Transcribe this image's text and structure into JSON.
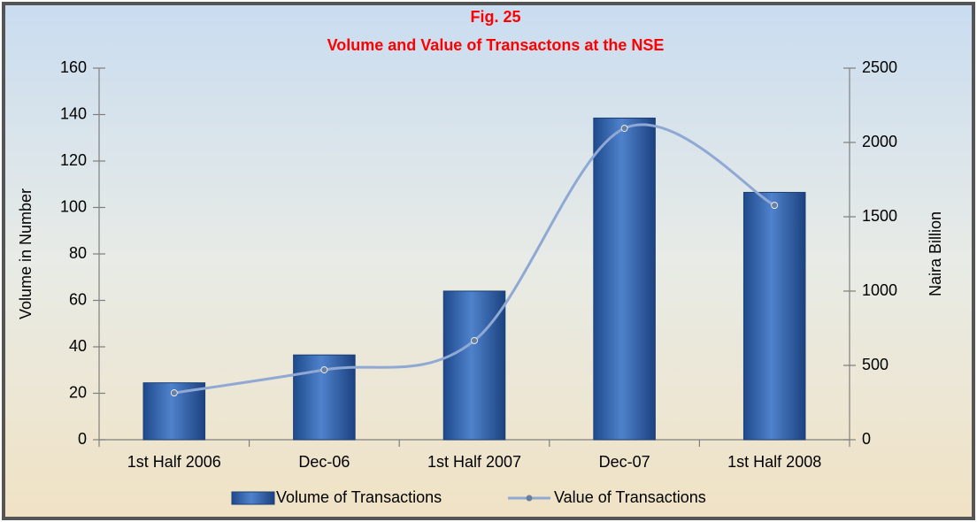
{
  "chart_data": {
    "type": "bar",
    "title": "Fig. 25",
    "subtitle": "Volume and Value of Transactons at the NSE",
    "title_color": "#ff0000",
    "categories": [
      "1st Half 2006",
      "Dec-06",
      "1st Half 2007",
      "Dec-07",
      "1st Half 2008"
    ],
    "series": [
      {
        "name": "Volume of Transactions",
        "type": "bar",
        "color": "#2e5fa8",
        "values": [
          24.5,
          36.5,
          64,
          138.5,
          106.5
        ]
      },
      {
        "name": "Value of Transactions",
        "type": "line",
        "axis": "y2",
        "color": "#8fa9d4",
        "values": [
          315,
          470,
          667,
          2095,
          1577
        ]
      }
    ],
    "ylabel": "Volume in Number",
    "y2label": "Naira Billion",
    "ylim": [
      0,
      160
    ],
    "yticks": [
      0,
      20,
      40,
      60,
      80,
      100,
      120,
      140,
      160
    ],
    "y2lim": [
      0,
      2500
    ],
    "y2ticks": [
      0,
      500,
      1000,
      1500,
      2000,
      2500
    ],
    "grid": false,
    "legend": "bottom"
  }
}
